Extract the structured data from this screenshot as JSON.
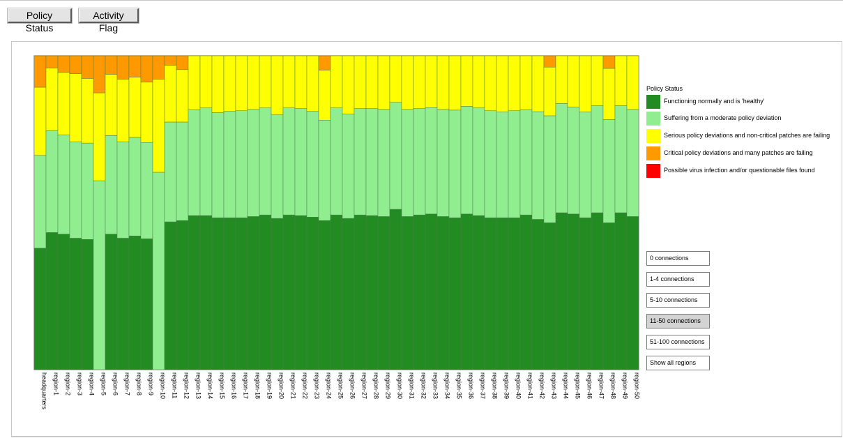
{
  "toolbar": {
    "policy_status_label": "Policy Status",
    "activity_flag_label": "Activity Flag"
  },
  "legend": {
    "title": "Policy Status",
    "items": [
      {
        "label": "Functioning normally and is 'healthy'",
        "color": "#228b22"
      },
      {
        "label": "Suffering from a moderate policy deviation",
        "color": "#90ee90"
      },
      {
        "label": "Serious policy deviations and non-critical patches are failing",
        "color": "#ffff00"
      },
      {
        "label": "Critical policy deviations and many patches are failing",
        "color": "#ff9900"
      },
      {
        "label": "Possible virus infection and/or questionable files found",
        "color": "#ff0000"
      }
    ]
  },
  "filters": [
    {
      "label": "0 connections",
      "selected": false
    },
    {
      "label": "1-4 connections",
      "selected": false
    },
    {
      "label": "5-10 connections",
      "selected": false
    },
    {
      "label": "11-50 connections",
      "selected": true
    },
    {
      "label": "51-100 connections",
      "selected": false
    },
    {
      "label": "Show all regions",
      "selected": false
    }
  ],
  "chart_data": {
    "type": "bar",
    "stacked": true,
    "normalized": true,
    "categories": [
      "headquarters",
      "region-1",
      "region-2",
      "region-3",
      "region-4",
      "region-5",
      "region-6",
      "region-7",
      "region-8",
      "region-9",
      "region-10",
      "region-11",
      "region-12",
      "region-13",
      "region-14",
      "region-15",
      "region-16",
      "region-17",
      "region-18",
      "region-19",
      "region-20",
      "region-21",
      "region-22",
      "region-23",
      "region-24",
      "region-25",
      "region-26",
      "region-27",
      "region-28",
      "region-29",
      "region-30",
      "region-31",
      "region-32",
      "region-33",
      "region-34",
      "region-35",
      "region-36",
      "region-37",
      "region-38",
      "region-39",
      "region-40",
      "region-41",
      "region-42",
      "region-43",
      "region-44",
      "region-45",
      "region-46",
      "region-47",
      "region-48",
      "region-49",
      "region-50"
    ],
    "series": [
      {
        "name": "Functioning normally and is 'healthy'",
        "color": "#228b22",
        "values": [
          38.7,
          43.7,
          43.2,
          41.9,
          41.5,
          0,
          43.2,
          41.9,
          42.6,
          41.7,
          0,
          47.1,
          47.5,
          49.1,
          49.1,
          48.4,
          48.4,
          48.4,
          48.8,
          49.3,
          48.2,
          49.3,
          49.1,
          48.6,
          47.5,
          49.3,
          48.2,
          49.3,
          49.1,
          48.8,
          51.1,
          48.8,
          49.3,
          49.6,
          48.8,
          48.4,
          49.6,
          49.1,
          48.4,
          48.4,
          48.4,
          49.3,
          47.9,
          46.8,
          50.0,
          49.6,
          48.4,
          50.0,
          46.8,
          50.0,
          48.8
        ]
      },
      {
        "name": "Suffering from a moderate policy deviation",
        "color": "#90ee90",
        "values": [
          29.6,
          32.5,
          31.6,
          30.7,
          30.7,
          60.2,
          31.4,
          30.7,
          31.4,
          30.7,
          62.9,
          31.8,
          31.4,
          33.7,
          34.3,
          33.5,
          33.9,
          34.1,
          34.1,
          34.1,
          33.0,
          34.1,
          34.1,
          33.7,
          32.0,
          34.1,
          33.3,
          33.9,
          34.1,
          34.1,
          34.1,
          34.1,
          33.9,
          33.9,
          34.1,
          34.3,
          34.3,
          34.3,
          34.1,
          33.7,
          34.1,
          33.5,
          34.3,
          34.1,
          34.8,
          34.1,
          33.7,
          34.1,
          32.9,
          34.1,
          34.1
        ]
      },
      {
        "name": "Serious policy deviations and non-critical patches are failing",
        "color": "#ffff00",
        "values": [
          21.7,
          19.9,
          19.9,
          21.7,
          20.6,
          28.0,
          19.5,
          19.9,
          19.2,
          19.2,
          29.6,
          18.1,
          16.7,
          17.2,
          16.6,
          18.1,
          17.7,
          17.5,
          17.1,
          16.6,
          18.8,
          16.6,
          16.8,
          17.7,
          15.9,
          16.6,
          18.5,
          16.8,
          16.8,
          17.1,
          14.8,
          17.1,
          16.8,
          16.5,
          17.1,
          17.3,
          16.1,
          16.6,
          17.5,
          17.9,
          17.5,
          17.2,
          17.8,
          15.5,
          15.2,
          16.3,
          17.9,
          15.9,
          16.3,
          15.9,
          17.1
        ]
      },
      {
        "name": "Critical policy deviations and many patches are failing",
        "color": "#ff9900",
        "values": [
          10.0,
          3.9,
          5.3,
          5.7,
          7.2,
          11.8,
          5.9,
          7.5,
          6.8,
          8.4,
          7.5,
          3.0,
          4.4,
          0,
          0,
          0,
          0,
          0,
          0,
          0,
          0,
          0,
          0,
          0,
          4.6,
          0,
          0,
          0,
          0,
          0,
          0,
          0,
          0,
          0,
          0,
          0,
          0,
          0,
          0,
          0,
          0,
          0,
          0,
          3.6,
          0,
          0,
          0,
          0,
          4.0,
          0,
          0
        ]
      },
      {
        "name": "Possible virus infection and/or questionable files found",
        "color": "#ff0000",
        "values": [
          0,
          0,
          0,
          0,
          0,
          0,
          0,
          0,
          0,
          0,
          0,
          0,
          0,
          0,
          0,
          0,
          0,
          0,
          0,
          0,
          0,
          0,
          0,
          0,
          0,
          0,
          0,
          0,
          0,
          0,
          0,
          0,
          0,
          0,
          0,
          0,
          0,
          0,
          0,
          0,
          0,
          0,
          0,
          0,
          0,
          0,
          0,
          0,
          0,
          0,
          0
        ]
      }
    ],
    "ylim": [
      0,
      100
    ],
    "grid": false,
    "legend_position": "right"
  }
}
